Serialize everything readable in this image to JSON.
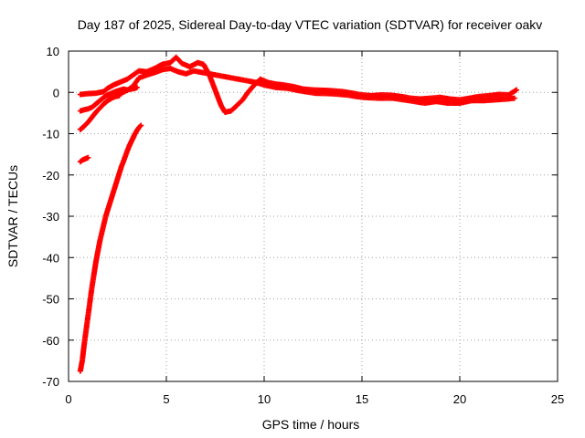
{
  "chart_data": {
    "type": "scatter",
    "title": "Day 187 of 2025, Sidereal Day-to-day VTEC variation (SDTVAR) for receiver oakv",
    "xlabel": "GPS time / hours",
    "ylabel": "SDTVAR / TECUs",
    "xlim": [
      0,
      25
    ],
    "ylim": [
      -70,
      10
    ],
    "xticks": [
      "0",
      "5",
      "10",
      "15",
      "20",
      "25"
    ],
    "yticks": [
      "10",
      "0",
      "-10",
      "-20",
      "-30",
      "-40",
      "-50",
      "-60",
      "-70"
    ],
    "grid": true,
    "marker_color": "#ff0000",
    "series": [
      {
        "name": "main-trace-upper",
        "points": [
          [
            0.6,
            -0.5
          ],
          [
            1.0,
            -0.3
          ],
          [
            1.4,
            -0.2
          ],
          [
            1.8,
            0.2
          ],
          [
            2.0,
            1.0
          ],
          [
            2.3,
            1.8
          ],
          [
            2.6,
            2.4
          ],
          [
            3.0,
            3.2
          ],
          [
            3.3,
            4.2
          ],
          [
            3.6,
            5.2
          ],
          [
            4.0,
            5.0
          ],
          [
            4.4,
            5.8
          ],
          [
            4.8,
            6.8
          ],
          [
            5.2,
            7.2
          ],
          [
            5.5,
            8.5
          ],
          [
            5.8,
            7.0
          ],
          [
            6.2,
            6.2
          ],
          [
            6.6,
            7.2
          ],
          [
            6.9,
            6.8
          ],
          [
            7.2,
            4.2
          ],
          [
            7.5,
            0.5
          ],
          [
            7.8,
            -3.2
          ],
          [
            8.0,
            -4.8
          ],
          [
            8.3,
            -4.5
          ],
          [
            8.6,
            -3.2
          ],
          [
            8.9,
            -1.8
          ],
          [
            9.2,
            0.2
          ],
          [
            9.5,
            1.8
          ],
          [
            9.8,
            3.2
          ],
          [
            10.2,
            2.4
          ],
          [
            10.6,
            2.0
          ],
          [
            11.0,
            1.8
          ],
          [
            11.5,
            1.4
          ],
          [
            12.0,
            0.8
          ],
          [
            12.5,
            0.6
          ],
          [
            13.0,
            0.5
          ],
          [
            13.5,
            0.4
          ],
          [
            14.0,
            0.2
          ],
          [
            14.5,
            -0.2
          ],
          [
            15.0,
            -0.6
          ],
          [
            15.5,
            -0.8
          ],
          [
            16.0,
            -0.6
          ],
          [
            16.5,
            -0.7
          ],
          [
            17.0,
            -1.0
          ],
          [
            17.5,
            -1.4
          ],
          [
            18.0,
            -1.6
          ],
          [
            18.5,
            -1.4
          ],
          [
            19.0,
            -1.2
          ],
          [
            19.5,
            -1.6
          ],
          [
            20.0,
            -1.8
          ],
          [
            20.5,
            -1.4
          ],
          [
            21.0,
            -1.0
          ],
          [
            21.5,
            -0.8
          ],
          [
            22.0,
            -0.5
          ],
          [
            22.5,
            -0.6
          ],
          [
            22.9,
            0.6
          ]
        ]
      },
      {
        "name": "main-trace-lower",
        "points": [
          [
            2.6,
            -0.4
          ],
          [
            3.0,
            0.5
          ],
          [
            3.3,
            1.5
          ],
          [
            3.6,
            3.5
          ],
          [
            4.0,
            4.2
          ],
          [
            4.4,
            4.8
          ],
          [
            4.8,
            5.5
          ],
          [
            5.2,
            5.8
          ],
          [
            5.6,
            5.0
          ],
          [
            6.0,
            4.5
          ],
          [
            6.4,
            5.2
          ],
          [
            9.6,
            2.4
          ],
          [
            10.0,
            1.8
          ],
          [
            10.6,
            1.2
          ],
          [
            11.2,
            1.0
          ],
          [
            11.8,
            0.4
          ],
          [
            12.6,
            -0.2
          ],
          [
            13.4,
            -0.3
          ],
          [
            14.2,
            -0.6
          ],
          [
            15.0,
            -1.2
          ],
          [
            15.8,
            -1.4
          ],
          [
            16.6,
            -1.4
          ],
          [
            17.4,
            -2.0
          ],
          [
            18.2,
            -2.6
          ],
          [
            18.8,
            -2.2
          ],
          [
            19.4,
            -2.6
          ],
          [
            20.0,
            -2.6
          ],
          [
            20.6,
            -2.0
          ],
          [
            21.2,
            -2.0
          ],
          [
            21.8,
            -1.8
          ],
          [
            22.4,
            -1.6
          ],
          [
            22.8,
            -1.4
          ]
        ]
      },
      {
        "name": "early-arc-a",
        "points": [
          [
            0.6,
            -4.5
          ],
          [
            0.8,
            -4.2
          ],
          [
            1.0,
            -4.0
          ],
          [
            1.2,
            -3.6
          ],
          [
            1.4,
            -2.8
          ],
          [
            1.6,
            -2.0
          ],
          [
            1.8,
            -1.2
          ],
          [
            2.0,
            -0.6
          ],
          [
            2.2,
            -0.2
          ],
          [
            2.4,
            0.2
          ],
          [
            2.6,
            0.5
          ],
          [
            2.8,
            0.8
          ],
          [
            3.0,
            0.6
          ],
          [
            3.2,
            0.8
          ],
          [
            3.4,
            1.0
          ],
          [
            3.5,
            1.2
          ]
        ]
      },
      {
        "name": "early-arc-b",
        "points": [
          [
            0.6,
            -9.0
          ],
          [
            0.8,
            -8.2
          ],
          [
            1.0,
            -7.2
          ],
          [
            1.2,
            -6.0
          ],
          [
            1.4,
            -4.8
          ],
          [
            1.6,
            -3.8
          ],
          [
            1.8,
            -2.8
          ],
          [
            2.0,
            -2.0
          ],
          [
            2.2,
            -1.4
          ],
          [
            2.4,
            -1.0
          ],
          [
            2.6,
            -0.8
          ]
        ]
      },
      {
        "name": "short-cluster",
        "points": [
          [
            0.6,
            -16.8
          ],
          [
            0.7,
            -16.4
          ],
          [
            0.8,
            -16.2
          ],
          [
            0.9,
            -16.0
          ],
          [
            1.0,
            -15.8
          ]
        ]
      },
      {
        "name": "steep-descent",
        "points": [
          [
            0.6,
            -67.5
          ],
          [
            0.7,
            -65.0
          ],
          [
            0.8,
            -61.0
          ],
          [
            0.9,
            -57.5
          ],
          [
            1.0,
            -54.0
          ],
          [
            1.1,
            -50.5
          ],
          [
            1.2,
            -47.0
          ],
          [
            1.3,
            -44.0
          ],
          [
            1.4,
            -41.0
          ],
          [
            1.5,
            -38.5
          ],
          [
            1.6,
            -36.0
          ],
          [
            1.7,
            -34.0
          ],
          [
            1.8,
            -32.0
          ],
          [
            1.9,
            -30.0
          ],
          [
            2.0,
            -28.5
          ],
          [
            2.1,
            -27.0
          ],
          [
            2.2,
            -25.5
          ],
          [
            2.3,
            -24.0
          ],
          [
            2.4,
            -22.5
          ],
          [
            2.5,
            -21.0
          ],
          [
            2.6,
            -19.5
          ],
          [
            2.7,
            -18.0
          ],
          [
            2.8,
            -16.8
          ],
          [
            2.9,
            -15.5
          ],
          [
            3.0,
            -14.2
          ],
          [
            3.1,
            -13.0
          ],
          [
            3.2,
            -12.0
          ],
          [
            3.3,
            -11.0
          ],
          [
            3.4,
            -10.0
          ],
          [
            3.5,
            -9.2
          ],
          [
            3.6,
            -8.5
          ],
          [
            3.7,
            -8.0
          ]
        ]
      }
    ]
  }
}
